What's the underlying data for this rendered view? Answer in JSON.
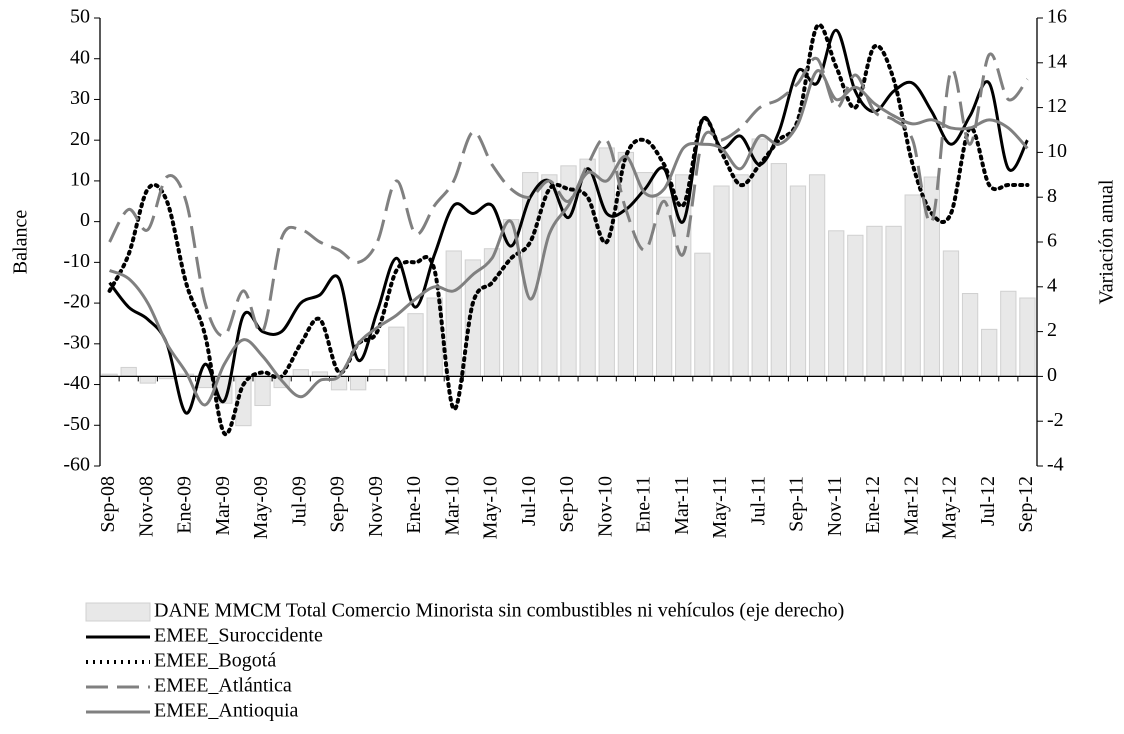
{
  "chart_data": {
    "type": "line",
    "ylabel": "Balance",
    "y2label": "Variación anual",
    "categories": [
      "Sep-08",
      null,
      "Nov-08",
      null,
      "Ene-09",
      null,
      "Mar-09",
      null,
      "May-09",
      null,
      "Jul-09",
      null,
      "Sep-09",
      null,
      "Nov-09",
      null,
      "Ene-10",
      null,
      "Mar-10",
      null,
      "May-10",
      null,
      "Jul-10",
      null,
      "Sep-10",
      null,
      "Nov-10",
      null,
      "Ene-11",
      null,
      "Mar-11",
      null,
      "May-11",
      null,
      "Jul-11",
      null,
      "Sep-11",
      null,
      "Nov-11",
      null,
      "Ene-12",
      null,
      "Mar-12",
      null,
      "May-12",
      null,
      "Jul-12",
      null,
      "Sep-12"
    ],
    "ylim": [
      -60,
      50
    ],
    "yticks": [
      -60,
      -50,
      -40,
      -30,
      -20,
      -10,
      0,
      10,
      20,
      30,
      40,
      50
    ],
    "y2lim": [
      -4,
      16
    ],
    "y2ticks": [
      -4,
      -2,
      0,
      2,
      4,
      6,
      8,
      10,
      12,
      14,
      16
    ],
    "series": [
      {
        "name": "DANE MMCM Total Comercio Minorista sin combustibles ni vehículos (eje derecho)",
        "type": "bar",
        "axis": "y2",
        "color": "#e8e8e8",
        "values": [
          0.1,
          0.4,
          -0.3,
          -0.1,
          0.1,
          -0.5,
          -1.2,
          -2.2,
          -1.3,
          -0.5,
          0.3,
          0.2,
          -0.6,
          -0.6,
          0.3,
          2.2,
          2.8,
          3.5,
          5.6,
          5.2,
          5.7,
          7.0,
          9.1,
          9.0,
          9.4,
          9.7,
          10.2,
          10.0,
          9.1,
          8.0,
          9.0,
          5.5,
          8.5,
          9.0,
          10.6,
          9.5,
          8.5,
          9.0,
          6.5,
          6.3,
          6.7,
          6.7,
          8.1,
          8.9,
          5.6,
          3.7,
          2.1,
          3.8,
          3.5
        ]
      },
      {
        "name": "EMEE_Suroccidente",
        "type": "line",
        "color": "#000000",
        "style": "solid",
        "values": [
          -15,
          -21,
          -24,
          -30,
          -47,
          -35,
          -44,
          -23,
          -27,
          -27,
          -20,
          -18,
          -14,
          -34,
          -22,
          -9,
          -21,
          -8,
          4,
          2,
          4,
          -6,
          6,
          10,
          1,
          13,
          2,
          3,
          8,
          13,
          0,
          25,
          18,
          21,
          14,
          22,
          37,
          34,
          47,
          32,
          27,
          32,
          34,
          27,
          19,
          26,
          34,
          13,
          20
        ]
      },
      {
        "name": "EMEE_Bogotá",
        "type": "line",
        "color": "#000000",
        "style": "dotted",
        "values": [
          -17,
          -8,
          8,
          5,
          -15,
          -28,
          -52,
          -40,
          -37,
          -38,
          -30,
          -24,
          -37,
          -30,
          -27,
          -12,
          -10,
          -12,
          -46,
          -20,
          -15,
          -9,
          -5,
          8,
          8,
          6,
          -5,
          16,
          20,
          14,
          4,
          25,
          17,
          9,
          14,
          20,
          25,
          48,
          38,
          28,
          43,
          35,
          14,
          2,
          2,
          23,
          9,
          9,
          9
        ]
      },
      {
        "name": "EMEE_Atlántica",
        "type": "line",
        "color": "#808080",
        "style": "dashed",
        "values": [
          -5,
          3,
          -2,
          11,
          5,
          -20,
          -28,
          -17,
          -27,
          -4,
          -2,
          -5,
          -7,
          -10,
          -5,
          10,
          -3,
          4,
          10,
          22,
          14,
          8,
          6,
          10,
          5,
          14,
          20,
          3,
          -7,
          5,
          -8,
          20,
          20,
          23,
          28,
          30,
          34,
          40,
          28,
          36,
          27,
          25,
          20,
          0,
          37,
          19,
          41,
          30,
          35
        ]
      },
      {
        "name": "EMEE_Antioquia",
        "type": "line",
        "color": "#808080",
        "style": "solid",
        "values": [
          -12,
          -14,
          -20,
          -30,
          -37,
          -45,
          -35,
          -29,
          -33,
          -39,
          -43,
          -39,
          -38,
          -30,
          -26,
          -23,
          -19,
          -16,
          -17,
          -13,
          -9,
          0,
          -19,
          -3,
          4,
          12,
          10,
          16,
          7,
          8,
          18,
          19,
          18,
          13,
          21,
          19,
          24,
          37,
          30,
          33,
          29,
          26,
          24,
          25,
          23,
          23,
          25,
          23,
          18
        ]
      }
    ]
  }
}
